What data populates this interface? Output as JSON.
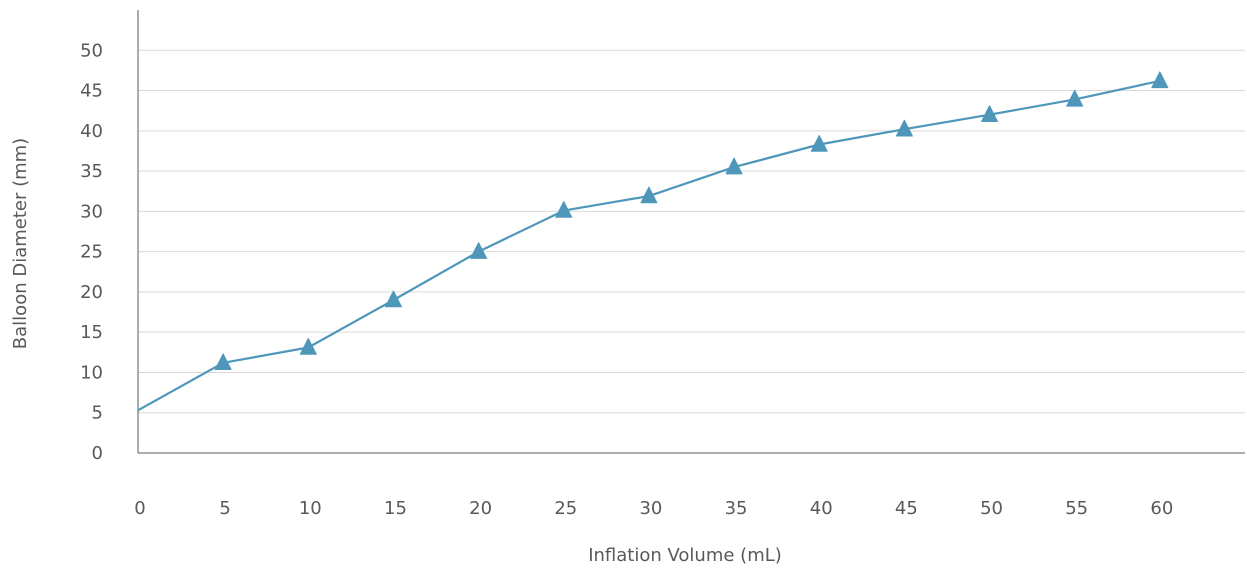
{
  "chart_data": {
    "type": "line",
    "title": "",
    "xlabel": "Inflation Volume (mL)",
    "ylabel": "Balloon Diameter (mm)",
    "x_ticks": [
      "0",
      "5",
      "10",
      "15",
      "20",
      "25",
      "30",
      "35",
      "40",
      "45",
      "50",
      "55",
      "60"
    ],
    "y_ticks": [
      "0",
      "5",
      "10",
      "15",
      "20",
      "25",
      "30",
      "35",
      "40",
      "45",
      "50"
    ],
    "xlim": [
      0,
      65
    ],
    "ylim": [
      0,
      55
    ],
    "grid": "horizontal",
    "legend": "none",
    "series": [
      {
        "marker": "triangle",
        "color": "#4e97bb",
        "x": [
          0,
          5,
          10,
          15,
          20,
          25,
          30,
          35,
          40,
          45,
          50,
          55,
          60
        ],
        "y": [
          5.3,
          11.2,
          13.1,
          19.0,
          25.0,
          30.1,
          31.9,
          35.5,
          38.3,
          40.2,
          42.0,
          43.9,
          46.2
        ],
        "marker_shown": [
          false,
          true,
          true,
          true,
          true,
          true,
          true,
          true,
          true,
          true,
          true,
          true,
          true
        ]
      }
    ]
  },
  "colors": {
    "line": "#4e97bb",
    "grid": "#d9d9d9",
    "axis": "#595959",
    "text": "#595959"
  }
}
